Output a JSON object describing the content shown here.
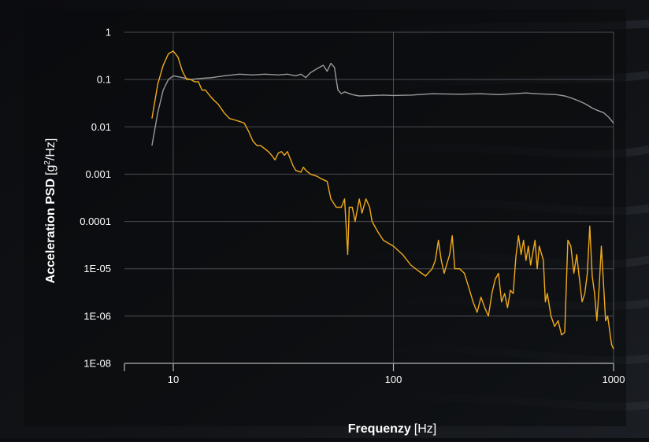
{
  "chart_data": {
    "type": "line",
    "xlabel_bold": "Frequenzy",
    "xlabel_unit": "[Hz]",
    "ylabel_bold": "Acceleration PSD",
    "ylabel_unit_pre": "[g",
    "ylabel_unit_sup": "2",
    "ylabel_unit_post": "/Hz]",
    "x_scale": "log",
    "y_scale": "log",
    "xlim": [
      6,
      1000
    ],
    "ylim_tick_labels_order": "top-to-bottom",
    "x_ticks": [
      {
        "value": 10,
        "label": "10"
      },
      {
        "value": 100,
        "label": "100"
      },
      {
        "value": 1000,
        "label": "1000"
      }
    ],
    "y_ticks": [
      "1",
      "0.1",
      "0.01",
      "0.001",
      "0.0001",
      "1E-05",
      "1E-06",
      "1E-08"
    ],
    "grid": true,
    "legend": "none",
    "series": [
      {
        "color": "#9a9a9a",
        "points": [
          [
            8,
            0.004
          ],
          [
            8.5,
            0.02
          ],
          [
            9,
            0.06
          ],
          [
            9.5,
            0.1
          ],
          [
            10,
            0.12
          ],
          [
            11,
            0.11
          ],
          [
            12,
            0.1
          ],
          [
            13,
            0.105
          ],
          [
            15,
            0.11
          ],
          [
            17,
            0.12
          ],
          [
            20,
            0.13
          ],
          [
            23,
            0.125
          ],
          [
            26,
            0.13
          ],
          [
            30,
            0.125
          ],
          [
            33,
            0.13
          ],
          [
            36,
            0.12
          ],
          [
            38,
            0.13
          ],
          [
            40,
            0.11
          ],
          [
            42,
            0.14
          ],
          [
            45,
            0.17
          ],
          [
            48,
            0.2
          ],
          [
            50,
            0.15
          ],
          [
            52,
            0.22
          ],
          [
            54,
            0.18
          ],
          [
            55,
            0.1
          ],
          [
            56,
            0.06
          ],
          [
            58,
            0.05
          ],
          [
            60,
            0.055
          ],
          [
            65,
            0.048
          ],
          [
            70,
            0.045
          ],
          [
            80,
            0.046
          ],
          [
            90,
            0.047
          ],
          [
            100,
            0.046
          ],
          [
            120,
            0.047
          ],
          [
            150,
            0.05
          ],
          [
            200,
            0.049
          ],
          [
            250,
            0.05
          ],
          [
            300,
            0.048
          ],
          [
            350,
            0.05
          ],
          [
            400,
            0.052
          ],
          [
            450,
            0.05
          ],
          [
            500,
            0.049
          ],
          [
            550,
            0.048
          ],
          [
            600,
            0.045
          ],
          [
            650,
            0.04
          ],
          [
            700,
            0.035
          ],
          [
            750,
            0.03
          ],
          [
            800,
            0.025
          ],
          [
            850,
            0.022
          ],
          [
            900,
            0.02
          ],
          [
            950,
            0.016
          ],
          [
            1000,
            0.012
          ]
        ]
      },
      {
        "color": "#f0aa1c",
        "points": [
          [
            8,
            0.015
          ],
          [
            8.5,
            0.08
          ],
          [
            9,
            0.2
          ],
          [
            9.5,
            0.35
          ],
          [
            10,
            0.4
          ],
          [
            10.5,
            0.3
          ],
          [
            11,
            0.15
          ],
          [
            11.5,
            0.1
          ],
          [
            12,
            0.1
          ],
          [
            12.5,
            0.09
          ],
          [
            13,
            0.09
          ],
          [
            13.5,
            0.06
          ],
          [
            14,
            0.06
          ],
          [
            15,
            0.04
          ],
          [
            16,
            0.03
          ],
          [
            17,
            0.02
          ],
          [
            18,
            0.015
          ],
          [
            19,
            0.014
          ],
          [
            20,
            0.013
          ],
          [
            21,
            0.012
          ],
          [
            22,
            0.008
          ],
          [
            23,
            0.005
          ],
          [
            24,
            0.004
          ],
          [
            25,
            0.004
          ],
          [
            27,
            0.003
          ],
          [
            28,
            0.0025
          ],
          [
            29,
            0.002
          ],
          [
            30,
            0.0028
          ],
          [
            31,
            0.003
          ],
          [
            32,
            0.0025
          ],
          [
            33,
            0.003
          ],
          [
            35,
            0.0015
          ],
          [
            36,
            0.0012
          ],
          [
            38,
            0.0011
          ],
          [
            39,
            0.0014
          ],
          [
            40,
            0.0012
          ],
          [
            42,
            0.001
          ],
          [
            45,
            0.0009
          ],
          [
            47,
            0.0008
          ],
          [
            50,
            0.0007
          ],
          [
            52,
            0.0003
          ],
          [
            55,
            0.0002
          ],
          [
            58,
            0.0002
          ],
          [
            60,
            0.0003
          ],
          [
            62,
            2e-05
          ],
          [
            63,
            0.0002
          ],
          [
            65,
            0.0002
          ],
          [
            67,
            0.0001
          ],
          [
            70,
            0.0003
          ],
          [
            72,
            0.00015
          ],
          [
            75,
            0.0003
          ],
          [
            78,
            0.0002
          ],
          [
            80,
            0.0001
          ],
          [
            85,
            6e-05
          ],
          [
            90,
            4e-05
          ],
          [
            100,
            3e-05
          ],
          [
            110,
            2e-05
          ],
          [
            120,
            1.2e-05
          ],
          [
            130,
            9e-06
          ],
          [
            140,
            7e-06
          ],
          [
            150,
            1e-05
          ],
          [
            155,
            1.5e-05
          ],
          [
            160,
            4e-05
          ],
          [
            165,
            1.5e-05
          ],
          [
            170,
            8e-06
          ],
          [
            180,
            2e-05
          ],
          [
            185,
            5e-05
          ],
          [
            190,
            1e-05
          ],
          [
            200,
            1e-05
          ],
          [
            210,
            8e-06
          ],
          [
            220,
            4e-06
          ],
          [
            230,
            2e-06
          ],
          [
            240,
            1.2e-06
          ],
          [
            250,
            2.5e-06
          ],
          [
            260,
            1.5e-06
          ],
          [
            270,
            1e-06
          ],
          [
            280,
            3e-06
          ],
          [
            290,
            6e-06
          ],
          [
            300,
            8e-06
          ],
          [
            310,
            2e-06
          ],
          [
            320,
            3e-06
          ],
          [
            330,
            1.5e-06
          ],
          [
            340,
            3.5e-06
          ],
          [
            350,
            3e-06
          ],
          [
            360,
            1.8e-05
          ],
          [
            370,
            5e-05
          ],
          [
            380,
            2e-05
          ],
          [
            390,
            4e-05
          ],
          [
            400,
            1.5e-05
          ],
          [
            410,
            3e-05
          ],
          [
            420,
            1.2e-05
          ],
          [
            440,
            4e-05
          ],
          [
            450,
            1e-05
          ],
          [
            460,
            3e-05
          ],
          [
            480,
            1.5e-05
          ],
          [
            490,
            2e-06
          ],
          [
            500,
            3e-06
          ],
          [
            520,
            1e-06
          ],
          [
            540,
            6e-07
          ],
          [
            560,
            8e-07
          ],
          [
            580,
            4e-07
          ],
          [
            600,
            4.5e-07
          ],
          [
            620,
            4e-05
          ],
          [
            640,
            3e-05
          ],
          [
            660,
            8e-06
          ],
          [
            680,
            2e-05
          ],
          [
            700,
            6e-06
          ],
          [
            720,
            2e-06
          ],
          [
            740,
            3e-06
          ],
          [
            760,
            8e-06
          ],
          [
            780,
            8e-05
          ],
          [
            800,
            7e-06
          ],
          [
            820,
            3e-06
          ],
          [
            840,
            8e-07
          ],
          [
            860,
            4e-06
          ],
          [
            880,
            3e-05
          ],
          [
            900,
            5e-06
          ],
          [
            920,
            8e-07
          ],
          [
            940,
            1e-06
          ],
          [
            960,
            5e-07
          ],
          [
            980,
            2.5e-07
          ],
          [
            1000,
            2e-07
          ]
        ]
      }
    ]
  }
}
